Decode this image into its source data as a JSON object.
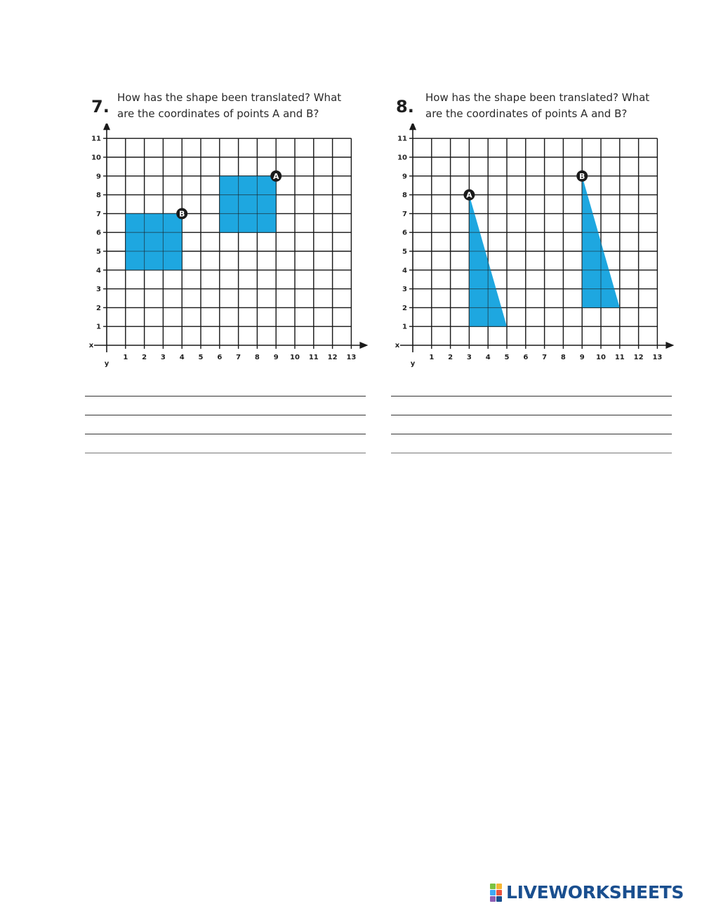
{
  "questions": [
    {
      "number": "7.",
      "lines": [
        "How has the shape been translated? What",
        "are the coordinates of points A and B?"
      ],
      "chart_data": {
        "type": "scatter",
        "x_ticks": [
          1,
          2,
          3,
          4,
          5,
          6,
          7,
          8,
          9,
          10,
          11,
          12,
          13
        ],
        "y_ticks": [
          1,
          2,
          3,
          4,
          5,
          6,
          7,
          8,
          9,
          10,
          11
        ],
        "x_axis_letter": "x",
        "y_axis_letter": "y",
        "shapes": [
          {
            "points": [
              [
                1,
                4
              ],
              [
                4,
                4
              ],
              [
                4,
                7
              ],
              [
                1,
                7
              ]
            ]
          },
          {
            "points": [
              [
                6,
                6
              ],
              [
                9,
                6
              ],
              [
                9,
                9
              ],
              [
                6,
                9
              ]
            ]
          }
        ],
        "labels": [
          {
            "text": "B",
            "x": 4,
            "y": 7
          },
          {
            "text": "A",
            "x": 9,
            "y": 9
          }
        ]
      }
    },
    {
      "number": "8.",
      "lines": [
        "How has the shape been translated? What",
        "are the coordinates of points A and B?"
      ],
      "chart_data": {
        "type": "scatter",
        "x_ticks": [
          1,
          2,
          3,
          4,
          5,
          6,
          7,
          8,
          9,
          10,
          11,
          12,
          13
        ],
        "y_ticks": [
          1,
          2,
          3,
          4,
          5,
          6,
          7,
          8,
          9,
          10,
          11
        ],
        "x_axis_letter": "x",
        "y_axis_letter": "y",
        "shapes": [
          {
            "points": [
              [
                3,
                8
              ],
              [
                3,
                1
              ],
              [
                5,
                1
              ]
            ]
          },
          {
            "points": [
              [
                9,
                9
              ],
              [
                9,
                2
              ],
              [
                11,
                2
              ]
            ]
          }
        ],
        "labels": [
          {
            "text": "A",
            "x": 3,
            "y": 8
          },
          {
            "text": "B",
            "x": 9,
            "y": 9
          }
        ]
      }
    }
  ],
  "colors": {
    "shape_fill": "#1ea7e0",
    "grid": "#1a1a1a",
    "marker": "#1a1a1a",
    "marker_text": "#ffffff"
  },
  "logo": {
    "text": "LIVEWORKSHEETS",
    "mark_letters": [
      "L",
      "I",
      "V",
      "E"
    ],
    "mark_colors": [
      "#7cc242",
      "#f7b733",
      "#3fa9f5",
      "#e9533e",
      "#8e5fb5",
      "#1a4f8f"
    ]
  }
}
